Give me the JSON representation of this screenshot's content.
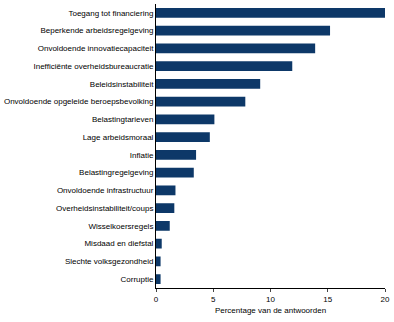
{
  "chart_data": {
    "type": "bar",
    "orientation": "horizontal",
    "categories": [
      "Toegang tot financiering",
      "Beperkende arbeidsregelgeving",
      "Onvoldoende innovatiecapaciteit",
      "Inefficiënte overheidsbureaucratie",
      "Beleidsinstabiliteit",
      "Onvoldoende opgeleide beroepsbevolking",
      "Belastingtarieven",
      "Lage arbeidsmoraal",
      "Inflatie",
      "Belastingregelgeving",
      "Onvoldoende infrastructuur",
      "Overheidsinstabiliteit/coups",
      "Wisselkoersregels",
      "Misdaad en diefstal",
      "Slechte volksgezondheid",
      "Corruptie"
    ],
    "values": [
      20,
      15.2,
      13.9,
      11.9,
      9.1,
      7.8,
      5.1,
      4.7,
      3.5,
      3.3,
      1.7,
      1.6,
      1.2,
      0.5,
      0.4,
      0.4
    ],
    "color": "#0d3868",
    "x_label": "Percentage van de antwoorden",
    "xlim": [
      0,
      20
    ],
    "xticks": [
      0,
      5,
      10,
      15,
      20
    ],
    "grid": false
  }
}
